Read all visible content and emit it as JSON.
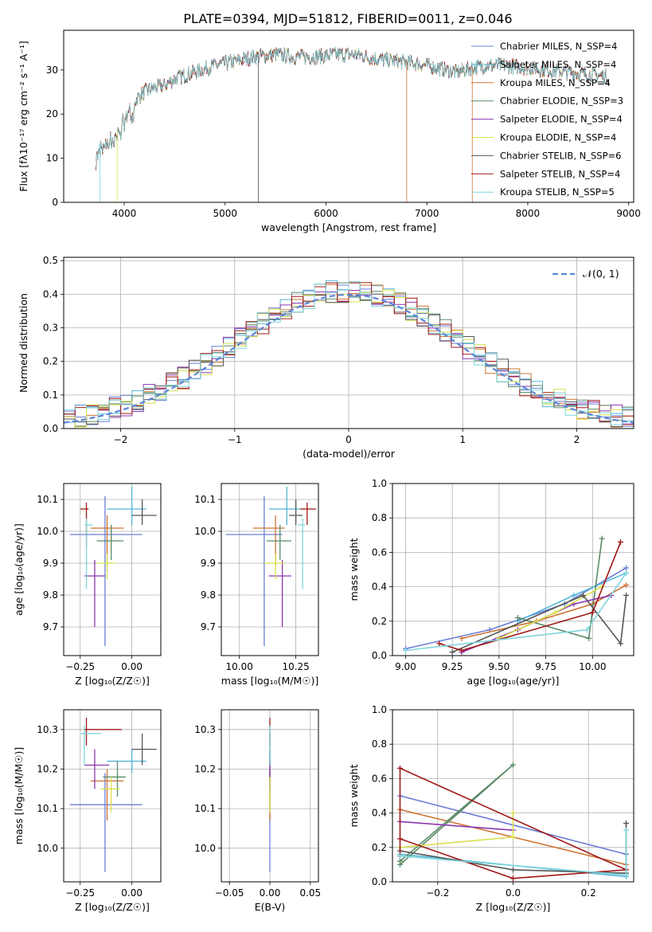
{
  "figure_title": "PLATE=0394, MJD=51812, FIBERID=0011, z=0.046",
  "colors": [
    "#6a7fd6",
    "#55b6d8",
    "#cf7436",
    "#5a8a66",
    "#8b36b0",
    "#d8e04c",
    "#555555",
    "#a01818",
    "#7fd6dc"
  ],
  "chart_data": [
    {
      "id": "spectrum",
      "type": "line",
      "xlabel": "wavelength [Angstrom, rest frame]",
      "ylabel": "Flux [fλ10⁻¹⁷ erg cm⁻² s⁻¹ A⁻¹]",
      "xlim": [
        3400,
        9050
      ],
      "ylim": [
        0,
        39
      ],
      "xticks": [
        4000,
        5000,
        6000,
        7000,
        8000,
        9000
      ],
      "yticks": [
        0,
        10,
        20,
        30
      ],
      "legend_position": "upper-right",
      "continuum": {
        "x": [
          3720,
          3800,
          3900,
          3950,
          4000,
          4100,
          4200,
          4300,
          4400,
          4500,
          4700,
          4900,
          5100,
          5300,
          5500,
          5700,
          5900,
          6100,
          6300,
          6500,
          6700,
          6900,
          7100,
          7300,
          7450,
          7600,
          7800,
          8000,
          8200,
          8400,
          8600,
          8800
        ],
        "y": [
          12,
          14,
          15,
          17,
          20,
          23,
          25,
          26,
          26.5,
          28,
          29.5,
          31,
          32,
          33,
          33.5,
          33,
          33,
          33.5,
          33.5,
          32.5,
          32,
          31.5,
          30.5,
          29.5,
          30.5,
          31,
          31,
          30.5,
          30,
          29.5,
          29,
          28.5
        ]
      },
      "series": [
        {
          "name": "Chabrier MILES, N_SSP=4"
        },
        {
          "name": "Salpeter MILES, N_SSP=4"
        },
        {
          "name": "Kroupa MILES, N_SSP=4"
        },
        {
          "name": "Chabrier ELODIE, N_SSP=3"
        },
        {
          "name": "Salpeter ELODIE, N_SSP=4"
        },
        {
          "name": "Kroupa ELODIE, N_SSP=4"
        },
        {
          "name": "Chabrier STELIB, N_SSP=6"
        },
        {
          "name": "Salpeter STELIB, N_SSP=4"
        },
        {
          "name": "Kroupa STELIB, N_SSP=5"
        }
      ]
    },
    {
      "id": "residuals",
      "type": "histogram",
      "xlabel": "(data-model)/error",
      "ylabel": "Normed distribution",
      "xlim": [
        -2.5,
        2.5
      ],
      "ylim": [
        0,
        0.51
      ],
      "xticks": [
        -2,
        -1,
        0,
        1,
        2
      ],
      "yticks": [
        0.0,
        0.1,
        0.2,
        0.3,
        0.4,
        0.5
      ],
      "grid": true,
      "bin_width": 0.1,
      "reference_label": "𝒩(0, 1)",
      "legend_position": "upper-right"
    },
    {
      "id": "z-age",
      "type": "errorbar",
      "xlabel": "Z [log₁₀(Z/Z☉)]",
      "ylabel": "age  [log₁₀(age/yr)]",
      "xlim": [
        -0.33,
        0.14
      ],
      "ylim": [
        9.61,
        10.15
      ],
      "xticks": [
        -0.25,
        0.0
      ],
      "yticks": [
        9.7,
        9.8,
        9.9,
        10.0,
        10.1
      ],
      "grid": true,
      "points": [
        {
          "x": -0.13,
          "xerr": [
            0.17,
            0.18
          ],
          "y": 9.99,
          "yerr": [
            0.35,
            0.12
          ]
        },
        {
          "x": 0.0,
          "xerr": [
            0.12,
            0.07
          ],
          "y": 10.07,
          "yerr": [
            0.05,
            0.07
          ]
        },
        {
          "x": -0.12,
          "xerr": [
            0.08,
            0.08
          ],
          "y": 10.01,
          "yerr": [
            0.12,
            0.04
          ]
        },
        {
          "x": -0.1,
          "xerr": [
            0.07,
            0.06
          ],
          "y": 9.97,
          "yerr": [
            0.06,
            0.05
          ]
        },
        {
          "x": -0.18,
          "xerr": [
            0.05,
            0.05
          ],
          "y": 9.86,
          "yerr": [
            0.16,
            0.05
          ]
        },
        {
          "x": -0.12,
          "xerr": [
            0.05,
            0.04
          ],
          "y": 9.9,
          "yerr": [
            0.05,
            0.03
          ]
        },
        {
          "x": 0.05,
          "xerr": [
            0.05,
            0.07
          ],
          "y": 10.05,
          "yerr": [
            0.03,
            0.05
          ]
        },
        {
          "x": -0.22,
          "xerr": [
            0.03,
            0.01
          ],
          "y": 10.07,
          "yerr": [
            0.12,
            0.02
          ]
        },
        {
          "x": -0.22,
          "xerr": [
            0.01,
            0.03
          ],
          "y": 10.02,
          "yerr": [
            0.2,
            0.02
          ]
        }
      ]
    },
    {
      "id": "mass-age",
      "type": "errorbar",
      "xlabel": "mass [log₁₀(M/M☉)]",
      "ylabel": "",
      "xlim": [
        9.92,
        10.35
      ],
      "ylim": [
        9.61,
        10.15
      ],
      "xticks": [
        10.0,
        10.25
      ],
      "yticks": [
        9.7,
        9.8,
        9.9,
        10.0,
        10.1
      ],
      "grid": true,
      "points": [
        {
          "x": 10.11,
          "xerr": [
            0.17,
            0.08
          ],
          "y": 9.99,
          "yerr": [
            0.35,
            0.12
          ]
        },
        {
          "x": 10.21,
          "xerr": [
            0.08,
            0.08
          ],
          "y": 10.07,
          "yerr": [
            0.05,
            0.07
          ]
        },
        {
          "x": 10.16,
          "xerr": [
            0.1,
            0.04
          ],
          "y": 10.01,
          "yerr": [
            0.12,
            0.04
          ]
        },
        {
          "x": 10.18,
          "xerr": [
            0.06,
            0.05
          ],
          "y": 9.97,
          "yerr": [
            0.06,
            0.05
          ]
        },
        {
          "x": 10.19,
          "xerr": [
            0.06,
            0.04
          ],
          "y": 9.86,
          "yerr": [
            0.16,
            0.05
          ]
        },
        {
          "x": 10.16,
          "xerr": [
            0.05,
            0.04
          ],
          "y": 9.9,
          "yerr": [
            0.05,
            0.03
          ]
        },
        {
          "x": 10.25,
          "xerr": [
            0.03,
            0.03
          ],
          "y": 10.05,
          "yerr": [
            0.03,
            0.05
          ]
        },
        {
          "x": 10.3,
          "xerr": [
            0.03,
            0.04
          ],
          "y": 10.07,
          "yerr": [
            0.05,
            0.02
          ]
        },
        {
          "x": 10.28,
          "xerr": [
            0.02,
            0.01
          ],
          "y": 10.02,
          "yerr": [
            0.2,
            0.02
          ]
        }
      ]
    },
    {
      "id": "age-weight",
      "type": "line",
      "xlabel": "age  [log₁₀(age/yr)]",
      "ylabel": "mass weight",
      "xlim": [
        8.93,
        10.22
      ],
      "ylim": [
        0,
        1
      ],
      "xticks": [
        9.0,
        9.25,
        9.5,
        9.75,
        10.0
      ],
      "yticks": [
        0.0,
        0.2,
        0.4,
        0.6,
        0.8,
        1.0
      ],
      "grid": true,
      "series": [
        {
          "x": [
            9.0,
            9.45,
            9.85,
            10.18
          ],
          "y": [
            0.04,
            0.15,
            0.3,
            0.51
          ]
        },
        {
          "x": [
            9.6,
            9.9,
            10.18
          ],
          "y": [
            0.2,
            0.35,
            0.48
          ]
        },
        {
          "x": [
            9.3,
            9.7,
            10.0,
            10.18
          ],
          "y": [
            0.1,
            0.2,
            0.3,
            0.41
          ]
        },
        {
          "x": [
            9.6,
            9.98,
            10.05
          ],
          "y": [
            0.22,
            0.1,
            0.68
          ]
        },
        {
          "x": [
            9.3,
            9.6,
            9.9,
            10.1
          ],
          "y": [
            0.02,
            0.15,
            0.3,
            0.35
          ]
        },
        {
          "x": [
            9.5,
            9.8,
            10.05
          ],
          "y": [
            0.1,
            0.25,
            0.4
          ]
        },
        {
          "x": [
            9.25,
            9.95,
            10.15,
            10.18
          ],
          "y": [
            0.02,
            0.35,
            0.07,
            0.35
          ]
        },
        {
          "x": [
            9.18,
            9.3,
            10.0,
            10.15
          ],
          "y": [
            0.07,
            0.03,
            0.25,
            0.66
          ]
        },
        {
          "x": [
            9.0,
            9.97,
            10.18
          ],
          "y": [
            0.03,
            0.15,
            0.48
          ]
        }
      ]
    },
    {
      "id": "z-mass",
      "type": "errorbar",
      "xlabel": "Z [log₁₀(Z/Z☉)]",
      "ylabel": "mass [log₁₀(M/M☉)]",
      "xlim": [
        -0.33,
        0.14
      ],
      "ylim": [
        9.915,
        10.35
      ],
      "xticks": [
        -0.25,
        0.0
      ],
      "yticks": [
        10.0,
        10.1,
        10.2,
        10.3
      ],
      "grid": true,
      "points": [
        {
          "x": -0.13,
          "xerr": [
            0.17,
            0.18
          ],
          "y": 10.11,
          "yerr": [
            0.17,
            0.08
          ]
        },
        {
          "x": 0.0,
          "xerr": [
            0.12,
            0.07
          ],
          "y": 10.22,
          "yerr": [
            0.03,
            0.03
          ]
        },
        {
          "x": -0.12,
          "xerr": [
            0.08,
            0.08
          ],
          "y": 10.17,
          "yerr": [
            0.1,
            0.03
          ]
        },
        {
          "x": -0.07,
          "xerr": [
            0.07,
            0.04
          ],
          "y": 10.18,
          "yerr": [
            0.05,
            0.04
          ]
        },
        {
          "x": -0.18,
          "xerr": [
            0.05,
            0.07
          ],
          "y": 10.21,
          "yerr": [
            0.06,
            0.04
          ]
        },
        {
          "x": -0.1,
          "xerr": [
            0.05,
            0.04
          ],
          "y": 10.15,
          "yerr": [
            0.06,
            0.03
          ]
        },
        {
          "x": 0.05,
          "xerr": [
            0.05,
            0.07
          ],
          "y": 10.25,
          "yerr": [
            0.04,
            0.04
          ]
        },
        {
          "x": -0.22,
          "xerr": [
            0.01,
            0.17
          ],
          "y": 10.3,
          "yerr": [
            0.04,
            0.03
          ]
        },
        {
          "x": -0.23,
          "xerr": [
            0.02,
            0.08
          ],
          "y": 10.29,
          "yerr": [
            0.08,
            0.02
          ]
        }
      ]
    },
    {
      "id": "ebv-mass",
      "type": "errorbar",
      "xlabel": "E(B-V)",
      "ylabel": "",
      "xlim": [
        -0.06,
        0.06
      ],
      "ylim": [
        9.915,
        10.35
      ],
      "xticks": [
        -0.05,
        0.0,
        0.05
      ],
      "yticks": [
        10.0,
        10.1,
        10.2,
        10.3
      ],
      "grid": true,
      "points": [
        {
          "x": 0,
          "xerr": [
            0,
            0
          ],
          "y": 10.11,
          "yerr": [
            0.17,
            0.08
          ]
        },
        {
          "x": 0,
          "xerr": [
            0,
            0
          ],
          "y": 10.22,
          "yerr": [
            0.03,
            0.03
          ]
        },
        {
          "x": 0,
          "xerr": [
            0,
            0
          ],
          "y": 10.17,
          "yerr": [
            0.1,
            0.03
          ]
        },
        {
          "x": 0,
          "xerr": [
            0,
            0
          ],
          "y": 10.18,
          "yerr": [
            0.05,
            0.04
          ]
        },
        {
          "x": 0,
          "xerr": [
            0,
            0
          ],
          "y": 10.21,
          "yerr": [
            0.06,
            0.04
          ]
        },
        {
          "x": 0,
          "xerr": [
            0,
            0
          ],
          "y": 10.15,
          "yerr": [
            0.06,
            0.03
          ]
        },
        {
          "x": 0,
          "xerr": [
            0,
            0
          ],
          "y": 10.25,
          "yerr": [
            0.04,
            0.04
          ]
        },
        {
          "x": 0,
          "xerr": [
            0,
            0
          ],
          "y": 10.3,
          "yerr": [
            0.04,
            0.03
          ]
        },
        {
          "x": 0,
          "xerr": [
            0,
            0
          ],
          "y": 10.29,
          "yerr": [
            0.08,
            0.02
          ]
        }
      ]
    },
    {
      "id": "z-weight",
      "type": "line",
      "xlabel": "Z [log₁₀(Z/Z☉)]",
      "ylabel": "mass weight",
      "xlim": [
        -0.32,
        0.32
      ],
      "ylim": [
        0,
        1
      ],
      "xticks": [
        -0.2,
        0.0,
        0.2
      ],
      "yticks": [
        0.0,
        0.2,
        0.4,
        0.6,
        0.8,
        1.0
      ],
      "grid": true,
      "series": [
        {
          "x": [
            -0.3,
            0.3
          ],
          "y": [
            0.5,
            0.16
          ]
        },
        {
          "x": [
            -0.3,
            0.3
          ],
          "y": [
            0.16,
            0.03
          ]
        },
        {
          "x": [
            -0.3,
            0.3
          ],
          "y": [
            0.42,
            0.1
          ]
        },
        {
          "x": [
            -0.3,
            0.0,
            -0.3
          ],
          "y": [
            0.1,
            0.68,
            0.12
          ]
        },
        {
          "x": [
            -0.3,
            0.0
          ],
          "y": [
            0.35,
            0.3
          ]
        },
        {
          "x": [
            -0.3,
            0.0,
            0.0
          ],
          "y": [
            0.2,
            0.26,
            0.4
          ]
        },
        {
          "x": [
            -0.3,
            0.0,
            0.3,
            0.3
          ],
          "y": [
            0.18,
            0.07,
            0.05,
            0.34
          ]
        },
        {
          "x": [
            -0.3,
            0.0,
            0.3,
            -0.3,
            -0.3
          ],
          "y": [
            0.25,
            0.02,
            0.07,
            0.66,
            0.15
          ]
        },
        {
          "x": [
            -0.3,
            0.3,
            0.3
          ],
          "y": [
            0.15,
            0.04,
            0.3
          ]
        }
      ]
    }
  ]
}
